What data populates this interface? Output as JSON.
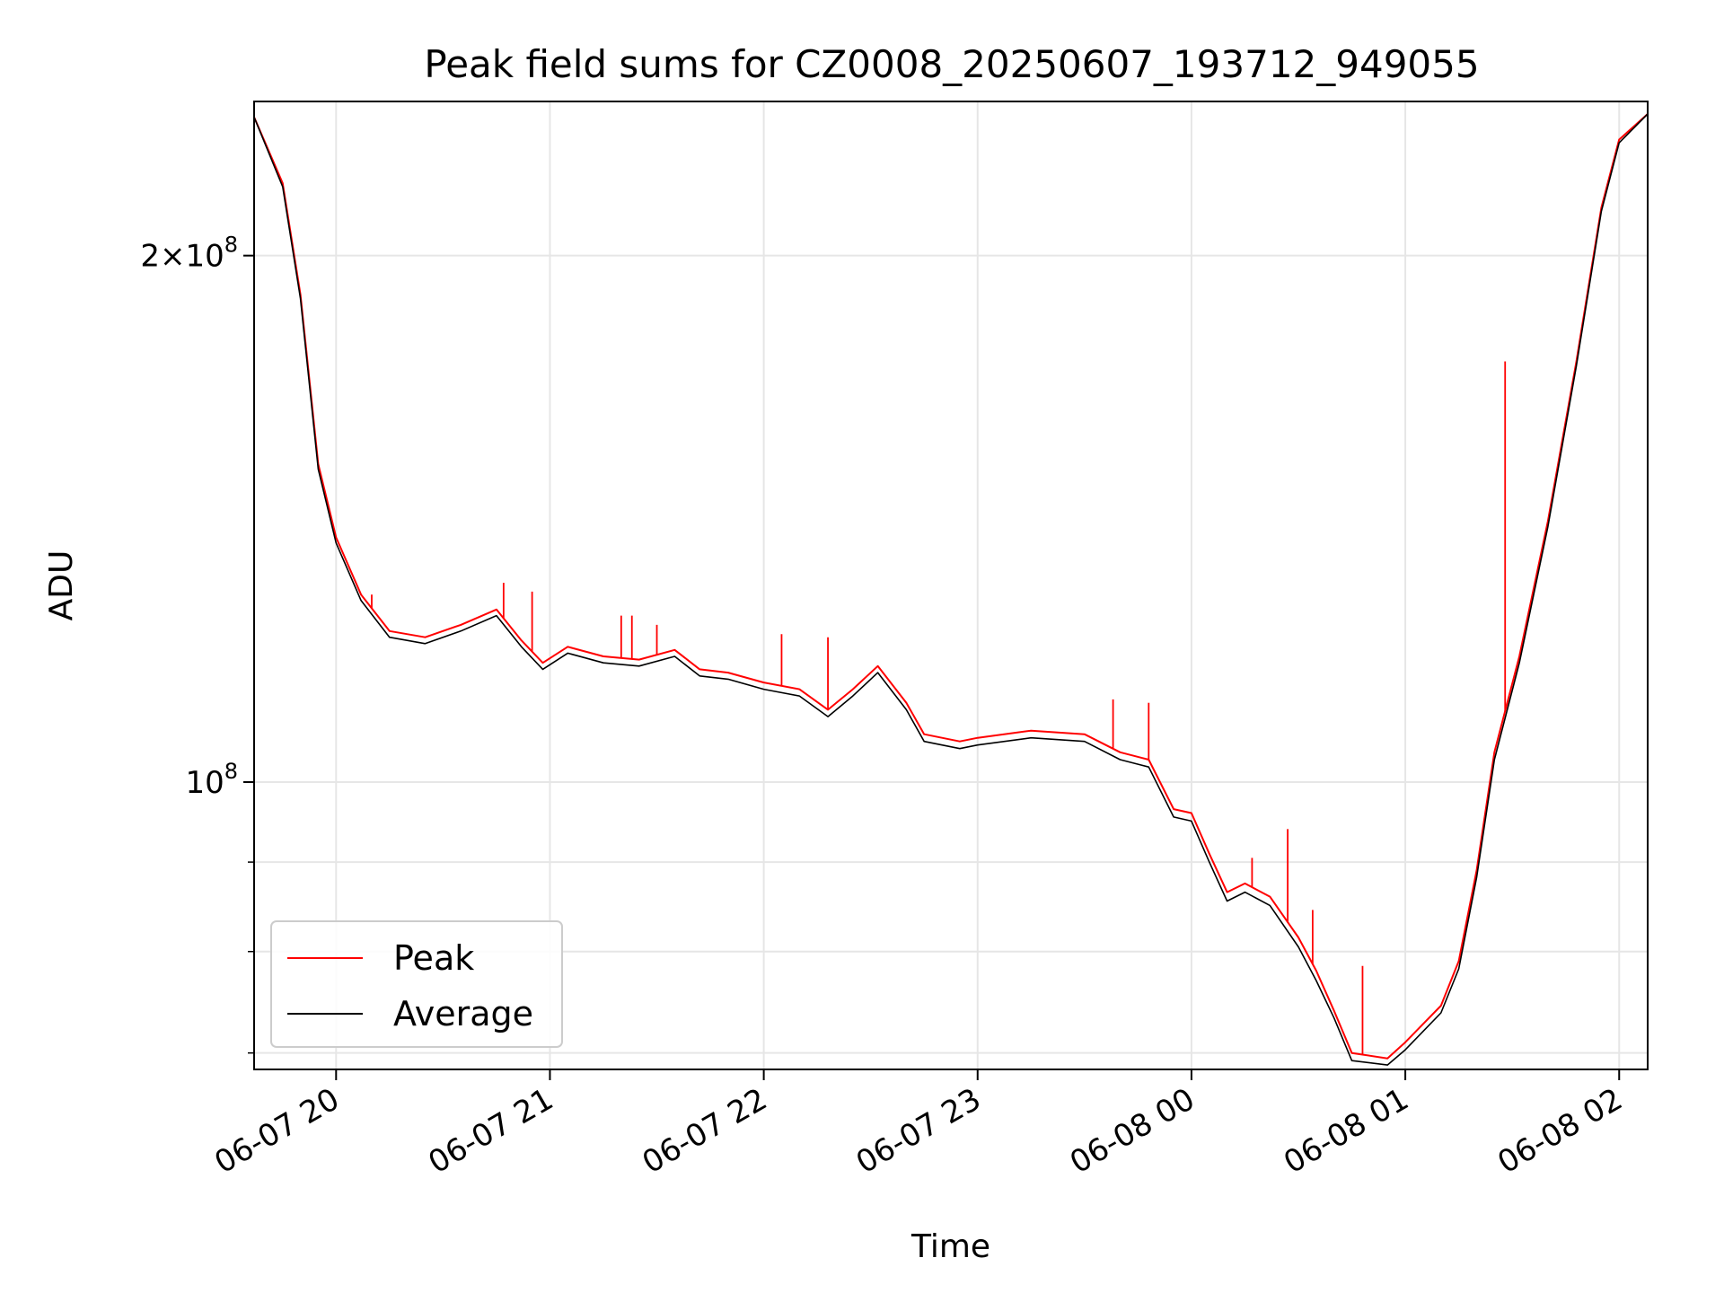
{
  "chart_data": {
    "type": "line",
    "title": "Peak field sums for CZ0008_20250607_193712_949055",
    "xlabel": "Time",
    "ylabel": "ADU",
    "yscale": "log",
    "grid": true,
    "legend_position": "lower-left",
    "xlim": [
      "2025-06-07 19:37",
      "2025-06-08 02:08"
    ],
    "ylim": [
      68500000,
      245000000
    ],
    "x_ticks": [
      {
        "value": "2025-06-07 20:00",
        "label": "06-07 20"
      },
      {
        "value": "2025-06-07 21:00",
        "label": "06-07 21"
      },
      {
        "value": "2025-06-07 22:00",
        "label": "06-07 22"
      },
      {
        "value": "2025-06-07 23:00",
        "label": "06-07 23"
      },
      {
        "value": "2025-06-08 00:00",
        "label": "06-08 00"
      },
      {
        "value": "2025-06-08 01:00",
        "label": "06-08 01"
      },
      {
        "value": "2025-06-08 02:00",
        "label": "06-08 02"
      }
    ],
    "y_major_ticks": [
      {
        "value": 100000000,
        "base": "10",
        "exp": "8",
        "prefix": ""
      },
      {
        "value": 200000000,
        "base": "10",
        "exp": "8",
        "prefix": "2×"
      }
    ],
    "y_minor_ticks": [
      70000000,
      80000000,
      90000000
    ],
    "series": [
      {
        "name": "Peak",
        "color": "#ff0000",
        "points": [
          [
            "2025-06-07 19:37",
            240000000
          ],
          [
            "2025-06-07 19:45",
            220000000
          ],
          [
            "2025-06-07 19:50",
            190000000
          ],
          [
            "2025-06-07 19:55",
            152000000
          ],
          [
            "2025-06-07 20:00",
            138000000
          ],
          [
            "2025-06-07 20:07",
            128000000
          ],
          [
            "2025-06-07 20:15",
            122000000
          ],
          [
            "2025-06-07 20:25",
            121000000
          ],
          [
            "2025-06-07 20:35",
            123000000
          ],
          [
            "2025-06-07 20:45",
            125500000
          ],
          [
            "2025-06-07 20:52",
            120500000
          ],
          [
            "2025-06-07 20:58",
            117000000
          ],
          [
            "2025-06-07 21:05",
            119500000
          ],
          [
            "2025-06-07 21:15",
            118000000
          ],
          [
            "2025-06-07 21:25",
            117500000
          ],
          [
            "2025-06-07 21:35",
            119000000
          ],
          [
            "2025-06-07 21:42",
            116000000
          ],
          [
            "2025-06-07 21:50",
            115500000
          ],
          [
            "2025-06-07 22:00",
            114000000
          ],
          [
            "2025-06-07 22:10",
            113000000
          ],
          [
            "2025-06-07 22:18",
            110000000
          ],
          [
            "2025-06-07 22:25",
            113000000
          ],
          [
            "2025-06-07 22:32",
            116500000
          ],
          [
            "2025-06-07 22:40",
            111000000
          ],
          [
            "2025-06-07 22:45",
            106500000
          ],
          [
            "2025-06-07 22:55",
            105500000
          ],
          [
            "2025-06-07 23:00",
            106000000
          ],
          [
            "2025-06-07 23:15",
            107000000
          ],
          [
            "2025-06-07 23:30",
            106500000
          ],
          [
            "2025-06-07 23:40",
            104000000
          ],
          [
            "2025-06-07 23:48",
            103000000
          ],
          [
            "2025-06-07 23:55",
            96500000
          ],
          [
            "2025-06-08 00:00",
            96000000
          ],
          [
            "2025-06-08 00:05",
            91000000
          ],
          [
            "2025-06-08 00:10",
            86500000
          ],
          [
            "2025-06-08 00:15",
            87500000
          ],
          [
            "2025-06-08 00:22",
            86000000
          ],
          [
            "2025-06-08 00:30",
            81500000
          ],
          [
            "2025-06-08 00:35",
            78000000
          ],
          [
            "2025-06-08 00:40",
            74000000
          ],
          [
            "2025-06-08 00:45",
            70000000
          ],
          [
            "2025-06-08 00:55",
            69500000
          ],
          [
            "2025-06-08 01:00",
            71000000
          ],
          [
            "2025-06-08 01:10",
            74500000
          ],
          [
            "2025-06-08 01:15",
            79000000
          ],
          [
            "2025-06-08 01:20",
            89000000
          ],
          [
            "2025-06-08 01:25",
            104000000
          ],
          [
            "2025-06-08 01:32",
            118000000
          ],
          [
            "2025-06-08 01:40",
            141000000
          ],
          [
            "2025-06-08 01:48",
            174000000
          ],
          [
            "2025-06-08 01:55",
            213000000
          ],
          [
            "2025-06-08 02:00",
            233000000
          ],
          [
            "2025-06-08 02:08",
            241000000
          ]
        ]
      },
      {
        "name": "Average",
        "color": "#000000",
        "points": [
          [
            "2025-06-07 19:37",
            240000000
          ],
          [
            "2025-06-07 19:45",
            219000000
          ],
          [
            "2025-06-07 19:50",
            189000000
          ],
          [
            "2025-06-07 19:55",
            151000000
          ],
          [
            "2025-06-07 20:00",
            137000000
          ],
          [
            "2025-06-07 20:07",
            127000000
          ],
          [
            "2025-06-07 20:15",
            121000000
          ],
          [
            "2025-06-07 20:25",
            120000000
          ],
          [
            "2025-06-07 20:35",
            122000000
          ],
          [
            "2025-06-07 20:45",
            124500000
          ],
          [
            "2025-06-07 20:52",
            119500000
          ],
          [
            "2025-06-07 20:58",
            116000000
          ],
          [
            "2025-06-07 21:05",
            118500000
          ],
          [
            "2025-06-07 21:15",
            117000000
          ],
          [
            "2025-06-07 21:25",
            116500000
          ],
          [
            "2025-06-07 21:35",
            118000000
          ],
          [
            "2025-06-07 21:42",
            115000000
          ],
          [
            "2025-06-07 21:50",
            114500000
          ],
          [
            "2025-06-07 22:00",
            113000000
          ],
          [
            "2025-06-07 22:10",
            112000000
          ],
          [
            "2025-06-07 22:18",
            109000000
          ],
          [
            "2025-06-07 22:25",
            112000000
          ],
          [
            "2025-06-07 22:32",
            115500000
          ],
          [
            "2025-06-07 22:40",
            110000000
          ],
          [
            "2025-06-07 22:45",
            105500000
          ],
          [
            "2025-06-07 22:55",
            104500000
          ],
          [
            "2025-06-07 23:00",
            105000000
          ],
          [
            "2025-06-07 23:15",
            106000000
          ],
          [
            "2025-06-07 23:30",
            105500000
          ],
          [
            "2025-06-07 23:40",
            103000000
          ],
          [
            "2025-06-07 23:48",
            102000000
          ],
          [
            "2025-06-07 23:55",
            95500000
          ],
          [
            "2025-06-08 00:00",
            95000000
          ],
          [
            "2025-06-08 00:05",
            90000000
          ],
          [
            "2025-06-08 00:10",
            85500000
          ],
          [
            "2025-06-08 00:15",
            86500000
          ],
          [
            "2025-06-08 00:22",
            85000000
          ],
          [
            "2025-06-08 00:30",
            80500000
          ],
          [
            "2025-06-08 00:35",
            77000000
          ],
          [
            "2025-06-08 00:40",
            73300000
          ],
          [
            "2025-06-08 00:45",
            69300000
          ],
          [
            "2025-06-08 00:55",
            68900000
          ],
          [
            "2025-06-08 01:00",
            70300000
          ],
          [
            "2025-06-08 01:10",
            73800000
          ],
          [
            "2025-06-08 01:15",
            78200000
          ],
          [
            "2025-06-08 01:20",
            88200000
          ],
          [
            "2025-06-08 01:25",
            103000000
          ],
          [
            "2025-06-08 01:32",
            117000000
          ],
          [
            "2025-06-08 01:40",
            140000000
          ],
          [
            "2025-06-08 01:48",
            173000000
          ],
          [
            "2025-06-08 01:55",
            212000000
          ],
          [
            "2025-06-08 02:00",
            232000000
          ],
          [
            "2025-06-08 02:08",
            241000000
          ]
        ]
      }
    ],
    "peak_spikes": [
      [
        "2025-06-07 20:10",
        128000000
      ],
      [
        "2025-06-07 20:47",
        130000000
      ],
      [
        "2025-06-07 20:55",
        128500000
      ],
      [
        "2025-06-07 21:20",
        124500000
      ],
      [
        "2025-06-07 21:23",
        124500000
      ],
      [
        "2025-06-07 21:30",
        123000000
      ],
      [
        "2025-06-07 22:05",
        121500000
      ],
      [
        "2025-06-07 22:18",
        121000000
      ],
      [
        "2025-06-07 23:38",
        111500000
      ],
      [
        "2025-06-07 23:48",
        111000000
      ],
      [
        "2025-06-08 00:17",
        90500000
      ],
      [
        "2025-06-08 00:27",
        94000000
      ],
      [
        "2025-06-08 00:34",
        84500000
      ],
      [
        "2025-06-08 00:48",
        78500000
      ],
      [
        "2025-06-08 01:28",
        174000000
      ]
    ]
  }
}
